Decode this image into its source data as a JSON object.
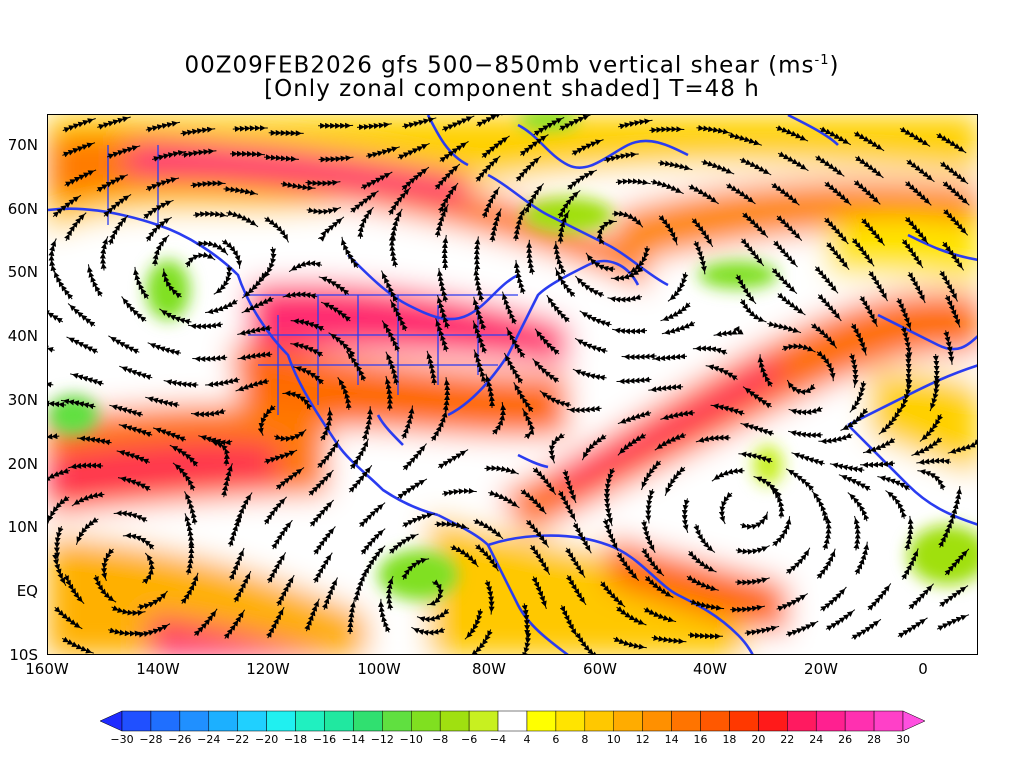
{
  "title": {
    "line1_prefix": "00Z09FEB2026 gfs 500−850mb vertical shear (ms",
    "line1_sup": "-1",
    "line1_suffix": ")",
    "line2": "[Only zonal component shaded] T=48 h"
  },
  "axes": {
    "lat_labels": [
      "70N",
      "60N",
      "50N",
      "40N",
      "30N",
      "20N",
      "10N",
      "EQ",
      "10S"
    ],
    "lon_labels": [
      "160W",
      "140W",
      "120W",
      "100W",
      "80W",
      "60W",
      "40W",
      "20W",
      "0"
    ]
  },
  "colorbar": {
    "labels": [
      "−30",
      "−28",
      "−26",
      "−24",
      "−22",
      "−20",
      "−18",
      "−16",
      "−14",
      "−12",
      "−10",
      "−8",
      "−6",
      "−4",
      "4",
      "6",
      "8",
      "10",
      "12",
      "14",
      "16",
      "18",
      "20",
      "22",
      "24",
      "26",
      "28",
      "30"
    ],
    "colors": [
      "#1e2bff",
      "#2050ff",
      "#1f6fff",
      "#2090ff",
      "#1cb0ff",
      "#20d0ff",
      "#20f0f0",
      "#20f0c0",
      "#20e8a0",
      "#30e070",
      "#60e040",
      "#80e020",
      "#a0e010",
      "#c8f020",
      "#ffffff",
      "#ffff00",
      "#ffe400",
      "#ffc800",
      "#ffac00",
      "#ff9000",
      "#ff7400",
      "#ff5800",
      "#ff3800",
      "#ff1a1a",
      "#ff1a60",
      "#ff2090",
      "#ff30b0",
      "#ff40c8",
      "#ff50e0"
    ]
  }
}
